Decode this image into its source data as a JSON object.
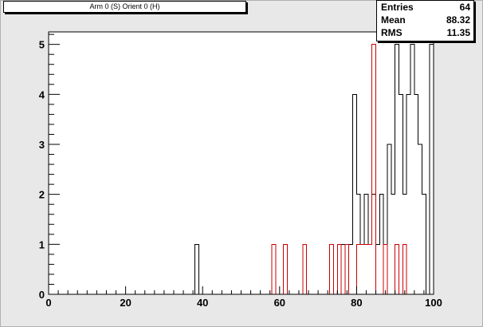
{
  "histogram": {
    "title": "Arm 0 (S) Orient 0 (H)"
  },
  "stats": {
    "entries_label": "Entries",
    "entries_value": "64",
    "mean_label": "Mean",
    "mean_value": "88.32",
    "rms_label": "RMS",
    "rms_value": "11.35"
  },
  "colors": {
    "background": "#e8e8e8",
    "frame": "#ffffff",
    "series_black": "#000000",
    "series_red": "#cc0000"
  },
  "chart_data": {
    "type": "histogram",
    "title": "Arm 0 (S) Orient 0 (H)",
    "xlabel": "",
    "ylabel": "",
    "xlim": [
      0,
      100
    ],
    "ylim": [
      0,
      5.25
    ],
    "bin_width": 1,
    "grid": false,
    "x_ticks": [
      0,
      20,
      40,
      60,
      80,
      100
    ],
    "y_ticks": [
      0,
      1,
      2,
      3,
      4,
      5
    ],
    "series": [
      {
        "color": "#000000",
        "bins": [
          {
            "x": 38,
            "y": 1
          },
          {
            "x": 75,
            "y": 1
          },
          {
            "x": 76,
            "y": 1
          },
          {
            "x": 78,
            "y": 1
          },
          {
            "x": 79,
            "y": 4
          },
          {
            "x": 80,
            "y": 2
          },
          {
            "x": 81,
            "y": 1
          },
          {
            "x": 82,
            "y": 2
          },
          {
            "x": 83,
            "y": 1
          },
          {
            "x": 84,
            "y": 2
          },
          {
            "x": 85,
            "y": 1
          },
          {
            "x": 86,
            "y": 2
          },
          {
            "x": 87,
            "y": 1
          },
          {
            "x": 88,
            "y": 3
          },
          {
            "x": 89,
            "y": 2
          },
          {
            "x": 90,
            "y": 5
          },
          {
            "x": 91,
            "y": 4
          },
          {
            "x": 92,
            "y": 2
          },
          {
            "x": 93,
            "y": 4
          },
          {
            "x": 94,
            "y": 5
          },
          {
            "x": 95,
            "y": 4
          },
          {
            "x": 96,
            "y": 3
          },
          {
            "x": 97,
            "y": 2
          },
          {
            "x": 99,
            "y": 5
          }
        ]
      },
      {
        "color": "#cc0000",
        "bins": [
          {
            "x": 58,
            "y": 1
          },
          {
            "x": 61,
            "y": 1
          },
          {
            "x": 66,
            "y": 1
          },
          {
            "x": 73,
            "y": 1
          },
          {
            "x": 75,
            "y": 1
          },
          {
            "x": 77,
            "y": 1
          },
          {
            "x": 80,
            "y": 1
          },
          {
            "x": 81,
            "y": 1
          },
          {
            "x": 82,
            "y": 1
          },
          {
            "x": 83,
            "y": 1
          },
          {
            "x": 84,
            "y": 5
          },
          {
            "x": 87,
            "y": 1
          },
          {
            "x": 90,
            "y": 1
          },
          {
            "x": 92,
            "y": 1
          }
        ]
      }
    ]
  }
}
